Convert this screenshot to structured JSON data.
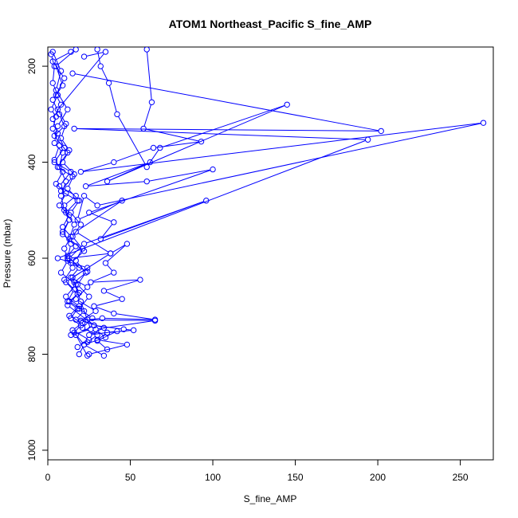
{
  "chart_data": {
    "type": "line",
    "title": "ATOM1 Northeast_Pacific S_fine_AMP",
    "xlabel": "S_fine_AMP",
    "ylabel": "Pressure (mbar)",
    "xlim": [
      0,
      270
    ],
    "ylim": [
      1020,
      160
    ],
    "y_reversed": true,
    "xticks": [
      0,
      50,
      100,
      150,
      200,
      250
    ],
    "yticks": [
      200,
      400,
      600,
      800,
      1000
    ],
    "grid": false,
    "legend": "none",
    "color": "#0000ff",
    "marker": "open-circle",
    "series": [
      {
        "values": [
          [
            3,
            170
          ],
          [
            8,
            210
          ],
          [
            5,
            250
          ],
          [
            12,
            290
          ],
          [
            6,
            325
          ],
          [
            4,
            360
          ],
          [
            9,
            380
          ],
          [
            7,
            410
          ],
          [
            11,
            440
          ],
          [
            8,
            470
          ],
          [
            10,
            500
          ],
          [
            13,
            520
          ],
          [
            9,
            545
          ],
          [
            14,
            570
          ],
          [
            12,
            600
          ],
          [
            15,
            620
          ],
          [
            10,
            645
          ],
          [
            16,
            665
          ],
          [
            12,
            690
          ],
          [
            18,
            705
          ],
          [
            14,
            725
          ],
          [
            20,
            740
          ],
          [
            16,
            755
          ],
          [
            22,
            780
          ],
          [
            19,
            800
          ]
        ]
      },
      {
        "values": [
          [
            30,
            165
          ],
          [
            32,
            200
          ],
          [
            37,
            235
          ],
          [
            42,
            300
          ],
          [
            60,
            410
          ],
          [
            68,
            370
          ],
          [
            145,
            280
          ],
          [
            36,
            440
          ],
          [
            62,
            400
          ],
          [
            23,
            450
          ],
          [
            60,
            440
          ],
          [
            100,
            415
          ],
          [
            25,
            505
          ],
          [
            40,
            525
          ],
          [
            32,
            560
          ],
          [
            96,
            480
          ],
          [
            22,
            570
          ],
          [
            13,
            600
          ],
          [
            38,
            590
          ],
          [
            48,
            570
          ],
          [
            35,
            610
          ],
          [
            40,
            630
          ],
          [
            26,
            650
          ],
          [
            56,
            645
          ],
          [
            34,
            668
          ],
          [
            45,
            685
          ],
          [
            28,
            700
          ],
          [
            40,
            715
          ],
          [
            65,
            728
          ],
          [
            33,
            725
          ],
          [
            24,
            728
          ],
          [
            28,
            740
          ],
          [
            46,
            748
          ],
          [
            52,
            750
          ],
          [
            36,
            755
          ],
          [
            30,
            770
          ],
          [
            48,
            780
          ],
          [
            25,
            800
          ]
        ]
      },
      {
        "values": [
          [
            60,
            165
          ],
          [
            63,
            275
          ],
          [
            58,
            330
          ],
          [
            93,
            357
          ],
          [
            64,
            370
          ],
          [
            40,
            400
          ],
          [
            20,
            420
          ],
          [
            264,
            318
          ],
          [
            30,
            490
          ],
          [
            22,
            470
          ],
          [
            18,
            520
          ],
          [
            45,
            480
          ],
          [
            17,
            545
          ],
          [
            38,
            590
          ],
          [
            15,
            640
          ],
          [
            20,
            690
          ],
          [
            26,
            748
          ],
          [
            14,
            760
          ]
        ]
      },
      {
        "values": [
          [
            2,
            175
          ],
          [
            4,
            200
          ],
          [
            3,
            235
          ],
          [
            6,
            260
          ],
          [
            2,
            290
          ],
          [
            5,
            305
          ],
          [
            3,
            330
          ],
          [
            7,
            365
          ],
          [
            4,
            395
          ],
          [
            9,
            420
          ],
          [
            5,
            445
          ],
          [
            11,
            465
          ],
          [
            7,
            490
          ],
          [
            13,
            510
          ],
          [
            9,
            535
          ],
          [
            14,
            555
          ],
          [
            10,
            580
          ],
          [
            12,
            605
          ],
          [
            8,
            630
          ],
          [
            17,
            655
          ],
          [
            11,
            680
          ],
          [
            19,
            700
          ],
          [
            13,
            720
          ],
          [
            21,
            735
          ],
          [
            15,
            750
          ],
          [
            25,
            770
          ],
          [
            18,
            785
          ]
        ]
      },
      {
        "values": [
          [
            15,
            215
          ],
          [
            202,
            335
          ],
          [
            16,
            330
          ],
          [
            194,
            353
          ],
          [
            6,
            600
          ],
          [
            24,
            620
          ],
          [
            11,
            650
          ],
          [
            18,
            675
          ],
          [
            12,
            698
          ],
          [
            28,
            740
          ],
          [
            17,
            760
          ],
          [
            24,
            803
          ]
        ]
      },
      {
        "values": [
          [
            17,
            165
          ],
          [
            5,
            200
          ],
          [
            9,
            240
          ],
          [
            3,
            270
          ],
          [
            7,
            300
          ],
          [
            10,
            325
          ],
          [
            4,
            345
          ],
          [
            12,
            380
          ],
          [
            6,
            410
          ],
          [
            15,
            430
          ],
          [
            8,
            460
          ],
          [
            18,
            480
          ],
          [
            11,
            505
          ],
          [
            16,
            530
          ],
          [
            13,
            560
          ],
          [
            22,
            585
          ],
          [
            14,
            610
          ],
          [
            24,
            628
          ],
          [
            16,
            650
          ],
          [
            19,
            672
          ],
          [
            13,
            690
          ],
          [
            22,
            710
          ],
          [
            17,
            728
          ],
          [
            65,
            730
          ],
          [
            29,
            748
          ],
          [
            35,
            765
          ],
          [
            22,
            780
          ],
          [
            34,
            803
          ]
        ]
      },
      {
        "values": [
          [
            14,
            170
          ],
          [
            3,
            190
          ],
          [
            10,
            225
          ],
          [
            5,
            260
          ],
          [
            8,
            280
          ],
          [
            3,
            310
          ],
          [
            6,
            340
          ],
          [
            10,
            370
          ],
          [
            4,
            400
          ],
          [
            14,
            420
          ],
          [
            7,
            450
          ],
          [
            17,
            470
          ],
          [
            10,
            490
          ],
          [
            13,
            520
          ],
          [
            9,
            550
          ],
          [
            17,
            575
          ],
          [
            12,
            595
          ],
          [
            19,
            620
          ],
          [
            14,
            640
          ],
          [
            24,
            660
          ],
          [
            17,
            685
          ],
          [
            29,
            710
          ],
          [
            20,
            730
          ],
          [
            34,
            745
          ],
          [
            25,
            760
          ],
          [
            42,
            752
          ],
          [
            30,
            772
          ],
          [
            36,
            790
          ]
        ]
      },
      {
        "values": [
          [
            22,
            180
          ],
          [
            35,
            170
          ],
          [
            6,
            290
          ],
          [
            11,
            320
          ],
          [
            8,
            350
          ],
          [
            13,
            375
          ],
          [
            9,
            400
          ],
          [
            16,
            425
          ],
          [
            12,
            455
          ],
          [
            19,
            480
          ],
          [
            14,
            505
          ],
          [
            20,
            530
          ],
          [
            15,
            555
          ],
          [
            21,
            580
          ],
          [
            17,
            605
          ],
          [
            23,
            630
          ],
          [
            18,
            655
          ],
          [
            25,
            680
          ],
          [
            19,
            705
          ],
          [
            27,
            725
          ],
          [
            21,
            745
          ],
          [
            30,
            760
          ],
          [
            24,
            775
          ]
        ]
      }
    ]
  }
}
